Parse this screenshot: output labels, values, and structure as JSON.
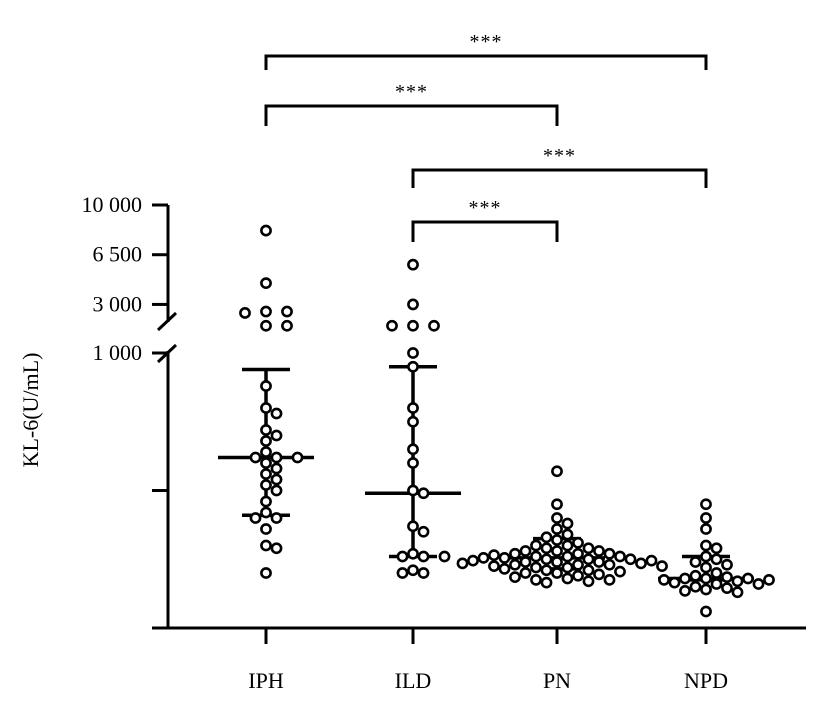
{
  "chart_data": {
    "type": "scatter",
    "subtype": "dot-plot with median and interquartile range bars, broken y-axis",
    "ylabel": "KL-6(U/mL)",
    "categories": [
      "IPH",
      "ILD",
      "PN",
      "NPD"
    ],
    "y_axis": {
      "broken": true,
      "lower_segment": {
        "range": [
          0,
          1000
        ],
        "scale": "linear",
        "labeled_ticks": [
          "1 000"
        ]
      },
      "upper_segment": {
        "range": [
          1200,
          10000
        ],
        "scale": "linear",
        "labeled_ticks": [
          "3 000",
          "6 500",
          "10 000"
        ]
      }
    },
    "tick_values": [
      1000,
      3000,
      6500,
      10000
    ],
    "tick_labels": [
      "1 000",
      "3 000",
      "6 500",
      "10 000"
    ],
    "unlabeled_tick_values": [
      500
    ],
    "groups": [
      {
        "name": "IPH",
        "median": 620,
        "q1": 410,
        "q3": 940,
        "values": [
          8200,
          4500,
          2500,
          2500,
          2400,
          1500,
          1500,
          880,
          800,
          780,
          720,
          700,
          680,
          640,
          620,
          620,
          620,
          600,
          580,
          560,
          540,
          520,
          500,
          460,
          420,
          400,
          400,
          360,
          300,
          290,
          200
        ]
      },
      {
        "name": "ILD",
        "median": 490,
        "q1": 260,
        "q3": 950,
        "values": [
          5800,
          3000,
          1500,
          1500,
          1500,
          1000,
          950,
          800,
          750,
          650,
          600,
          500,
          490,
          370,
          350,
          270,
          260,
          260,
          260,
          210,
          200,
          200
        ]
      },
      {
        "name": "PN",
        "median": 255,
        "q1": 215,
        "q3": 325,
        "values": [
          570,
          450,
          400,
          380,
          360,
          340,
          330,
          320,
          310,
          300,
          300,
          290,
          290,
          280,
          280,
          280,
          270,
          270,
          270,
          265,
          260,
          260,
          260,
          255,
          255,
          250,
          250,
          250,
          245,
          245,
          240,
          240,
          240,
          235,
          235,
          230,
          230,
          230,
          225,
          225,
          220,
          220,
          215,
          210,
          210,
          205,
          200,
          200,
          195,
          190,
          185,
          180,
          175,
          175,
          170,
          165
        ]
      },
      {
        "name": "NPD",
        "median": 180,
        "q1": 175,
        "q3": 260,
        "values": [
          450,
          400,
          360,
          300,
          290,
          260,
          250,
          240,
          230,
          220,
          200,
          190,
          185,
          180,
          180,
          180,
          175,
          175,
          170,
          165,
          160,
          160,
          150,
          145,
          140,
          135,
          130,
          60
        ]
      }
    ],
    "significance": [
      {
        "from": "IPH",
        "to": "NPD",
        "label": "***"
      },
      {
        "from": "IPH",
        "to": "PN",
        "label": "***"
      },
      {
        "from": "ILD",
        "to": "NPD",
        "label": "***"
      },
      {
        "from": "ILD",
        "to": "PN",
        "label": "***"
      }
    ]
  }
}
